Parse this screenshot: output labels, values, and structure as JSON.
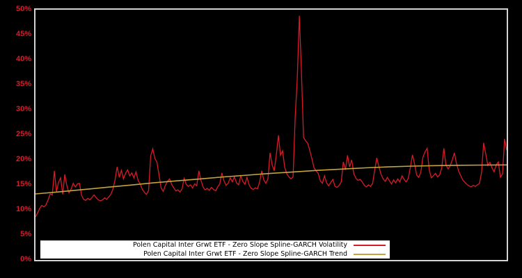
{
  "window": {
    "background": "#000000",
    "plot_border_color": "#d4d4d4"
  },
  "legend": {
    "background": "#ffffff",
    "text_color": "#000000",
    "position": "bottom-center-inside-plot"
  },
  "chart_data": {
    "type": "line",
    "title": "",
    "xlabel": "",
    "ylabel": "",
    "x_axis": {
      "tick_labels": []
    },
    "y_axis": {
      "min": 0,
      "max": 50,
      "tick_step": 5,
      "unit": "%",
      "tick_labels_top_to_bottom": [
        "50%",
        "45%",
        "40%",
        "35%",
        "30%",
        "25%",
        "20%",
        "15%",
        "10%",
        "5%",
        "0%"
      ],
      "label_color": "#e0182a"
    },
    "grid": "off",
    "plot_background": "#000000",
    "series": [
      {
        "name": "Polen Capital Inter Grwt ETF - Zero Slope Spline-GARCH Volatility",
        "color": "#d81b28",
        "stroke_width": 1.3,
        "values": [
          8.6,
          9.4,
          10.3,
          10.9,
          10.6,
          11.0,
          12.0,
          13.2,
          13.0,
          17.8,
          13.6,
          15.5,
          16.4,
          13.1,
          17.1,
          14.8,
          13.4,
          14.2,
          15.3,
          14.6,
          15.2,
          15.3,
          12.9,
          12.1,
          11.9,
          12.3,
          12.0,
          12.5,
          13.0,
          12.4,
          12.0,
          11.8,
          12.0,
          12.4,
          12.1,
          12.6,
          13.1,
          14.2,
          16.0,
          18.6,
          16.5,
          17.9,
          16.2,
          17.3,
          18.0,
          16.8,
          17.4,
          16.4,
          17.6,
          15.9,
          15.2,
          14.1,
          13.5,
          13.1,
          13.9,
          20.8,
          22.2,
          20.3,
          19.5,
          17.0,
          14.4,
          13.7,
          14.9,
          15.7,
          16.2,
          15.1,
          14.4,
          13.8,
          14.0,
          13.6,
          14.2,
          16.3,
          15.1,
          14.7,
          15.0,
          14.4,
          15.2,
          14.8,
          17.8,
          15.9,
          14.6,
          14.0,
          14.3,
          13.9,
          14.5,
          14.1,
          13.8,
          14.6,
          15.2,
          17.4,
          15.8,
          14.9,
          15.3,
          16.4,
          15.6,
          16.6,
          15.4,
          15.0,
          16.8,
          15.7,
          15.1,
          16.5,
          15.0,
          14.3,
          14.1,
          14.4,
          14.2,
          15.6,
          17.8,
          16.0,
          15.3,
          16.2,
          21.4,
          19.0,
          17.8,
          21.0,
          24.9,
          20.9,
          21.8,
          18.5,
          17.2,
          16.6,
          16.2,
          16.6,
          28.5,
          36.2,
          48.8,
          37.5,
          24.5,
          23.8,
          23.3,
          21.8,
          20.2,
          18.4,
          17.8,
          17.3,
          15.8,
          15.3,
          16.8,
          15.4,
          14.8,
          15.5,
          16.1,
          14.7,
          14.5,
          14.9,
          15.6,
          19.6,
          18.0,
          20.9,
          18.6,
          20.0,
          17.2,
          16.3,
          15.9,
          16.1,
          15.6,
          14.9,
          14.6,
          15.0,
          14.7,
          15.3,
          18.0,
          20.4,
          18.6,
          17.1,
          16.2,
          15.7,
          16.5,
          15.8,
          15.2,
          16.0,
          15.4,
          16.2,
          15.6,
          16.8,
          16.1,
          15.6,
          16.3,
          18.5,
          21.0,
          19.2,
          17.0,
          16.5,
          17.5,
          20.5,
          21.6,
          22.3,
          18.0,
          16.4,
          16.8,
          17.3,
          16.6,
          17.0,
          18.4,
          22.3,
          19.0,
          18.2,
          18.8,
          20.0,
          21.4,
          19.3,
          17.8,
          16.9,
          16.0,
          15.5,
          15.1,
          14.8,
          14.6,
          14.9,
          14.7,
          15.0,
          15.3,
          17.5,
          23.4,
          21.2,
          18.9,
          19.5,
          18.4,
          17.6,
          19.0,
          19.6,
          16.5,
          17.2,
          24.2,
          21.9
        ]
      },
      {
        "name": "Polen Capital Inter Grwt ETF - Zero Slope Spline-GARCH Trend",
        "color": "#c4a43c",
        "stroke_width": 1.6,
        "values": [
          13.2,
          13.6,
          14.05,
          14.5,
          14.95,
          15.4,
          15.8,
          16.2,
          16.6,
          16.95,
          17.3,
          17.6,
          17.9,
          18.15,
          18.4,
          18.6,
          18.75,
          18.85,
          18.92,
          18.96,
          18.98
        ]
      }
    ],
    "legend_entries": [
      "Polen Capital Inter Grwt ETF - Zero Slope Spline-GARCH Volatility",
      "Polen Capital Inter Grwt ETF - Zero Slope Spline-GARCH Trend"
    ]
  }
}
